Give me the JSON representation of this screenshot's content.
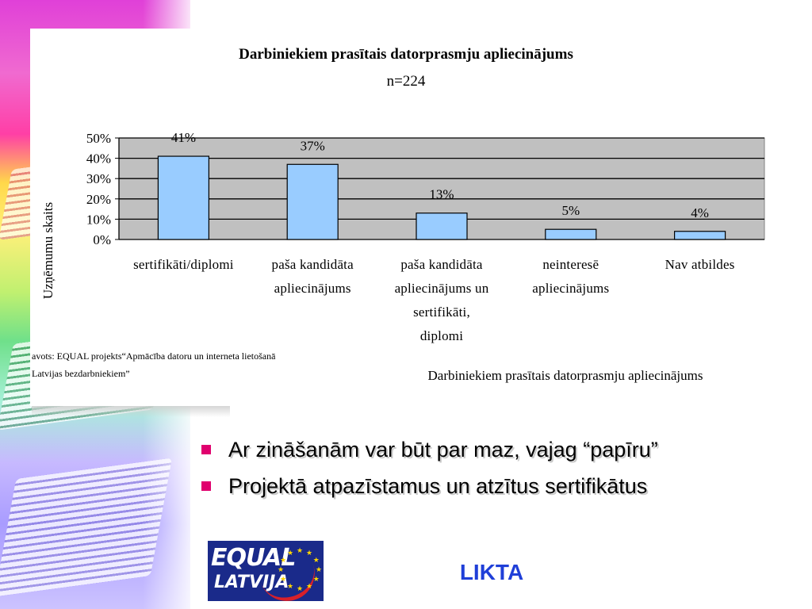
{
  "chart_data": {
    "type": "bar",
    "title": "Darbiniekiem prasītais datorprasmju apliecinājums",
    "subtitle": "n=224",
    "ylabel": "Uzņēmumu skaits",
    "xlabel": "Darbiniekiem prasītais datorprasmju apliecinājums",
    "categories": [
      [
        "sertifikāti/diplomi"
      ],
      [
        "paša kandidāta",
        "apliecinājums"
      ],
      [
        "paša kandidāta",
        "apliecinājums un",
        "sertifikāti,",
        "diplomi"
      ],
      [
        "neinteresē",
        "apliecinājums"
      ],
      [
        "Nav atbildes"
      ]
    ],
    "values": [
      41,
      37,
      13,
      5,
      4
    ],
    "data_labels": [
      "41%",
      "37%",
      "13%",
      "5%",
      "4%"
    ],
    "ylim": [
      0,
      50
    ],
    "yticks": [
      "0%",
      "10%",
      "20%",
      "30%",
      "40%",
      "50%"
    ],
    "grid": true,
    "bar_color": "#99ccff",
    "plot_background": "#c0c0c0"
  },
  "source": {
    "line1": "avots: EQUAL projekts“Apmācība datoru un interneta lietošanā",
    "line2": "Latvijas bezdarbniekiem”"
  },
  "bullets": [
    "Ar zināšanām var būt par maz, vajag “papīru”",
    "Projektā atpazīstamus un atzītus sertifikātus"
  ],
  "logo": {
    "main": "EQUAL",
    "sub": "LATVIJA"
  },
  "brand": "LIKTA",
  "colors": {
    "bullet": "#e0006e",
    "brand": "#1f3fd8",
    "logo_bg": "#1a2a8a"
  }
}
